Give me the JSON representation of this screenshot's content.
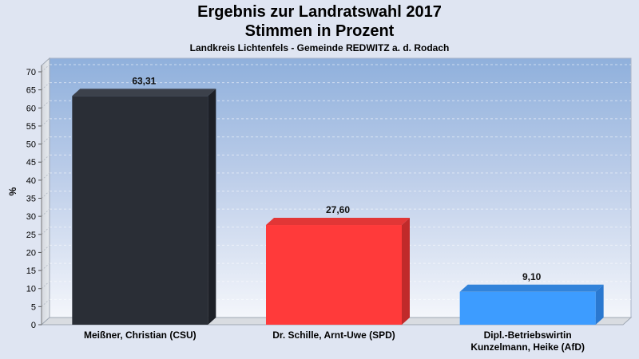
{
  "title": "Ergebnis zur Landratswahl 2017",
  "subtitle": "Stimmen in Prozent",
  "subsubtitle": "Landkreis Lichtenfels - Gemeinde REDWITZ a. d. Rodach",
  "chart_data": {
    "type": "bar",
    "title": "Ergebnis zur Landratswahl 2017",
    "subtitle": "Stimmen in Prozent",
    "xlabel": "",
    "ylabel": "%",
    "ylim": [
      0,
      70
    ],
    "yticks": [
      0,
      5,
      10,
      15,
      20,
      25,
      30,
      35,
      40,
      45,
      50,
      55,
      60,
      65,
      70
    ],
    "grid": true,
    "categories": [
      "Meißner, Christian (CSU)",
      "Dr. Schille, Arnt-Uwe (SPD)",
      "Dipl.-Betriebswirtin Kunzelmann, Heike (AfD)"
    ],
    "category_lines": [
      [
        "Meißner, Christian (CSU)"
      ],
      [
        "Dr. Schille, Arnt-Uwe (SPD)"
      ],
      [
        "Dipl.-Betriebswirtin",
        "Kunzelmann, Heike (AfD)"
      ]
    ],
    "values": [
      63.31,
      27.6,
      9.1
    ],
    "data_labels": [
      "63,31",
      "27,60",
      "9,10"
    ],
    "colors": [
      "#2a2e36",
      "#ff3a3a",
      "#3d9cff"
    ],
    "side_colors": [
      "#1d2027",
      "#c02a2a",
      "#2a78d0"
    ],
    "top_colors": [
      "#3c414b",
      "#e23636",
      "#3283da"
    ]
  }
}
